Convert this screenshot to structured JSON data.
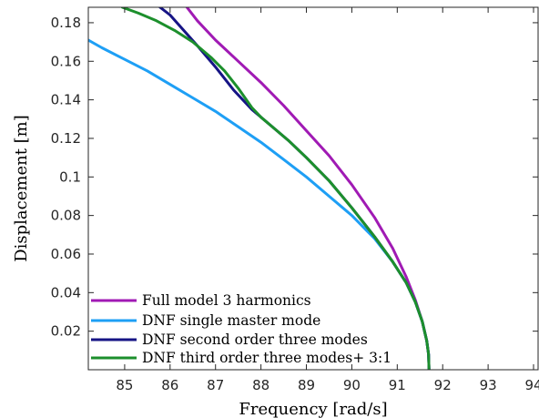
{
  "chart_data": {
    "type": "line",
    "xlabel": "Frequency [rad/s]",
    "ylabel": "Displacement [m]",
    "xlim": [
      84.2,
      94.1
    ],
    "ylim": [
      0.0,
      0.188
    ],
    "x_ticks": [
      "85",
      "86",
      "87",
      "88",
      "89",
      "90",
      "91",
      "92",
      "93",
      "94"
    ],
    "y_ticks": [
      "0.02",
      "0.04",
      "0.06",
      "0.08",
      "0.1",
      "0.12",
      "0.14",
      "0.16",
      "0.18"
    ],
    "legend_position": "bottom-left",
    "grid": false,
    "series": [
      {
        "name": "Full model 3 harmonics",
        "color": "#a01ab4",
        "x": [
          86.37,
          86.6,
          87.0,
          87.5,
          88.0,
          88.5,
          89.0,
          89.5,
          90.0,
          90.5,
          90.9,
          91.2,
          91.4,
          91.55,
          91.65,
          91.69,
          91.7
        ],
        "y": [
          0.188,
          0.181,
          0.171,
          0.16,
          0.149,
          0.137,
          0.124,
          0.111,
          0.096,
          0.079,
          0.063,
          0.048,
          0.036,
          0.025,
          0.015,
          0.008,
          0.0
        ]
      },
      {
        "name": "DNF single master mode",
        "color": "#1e9ff5",
        "x": [
          84.2,
          84.5,
          85.0,
          85.5,
          86.0,
          86.5,
          87.0,
          87.5,
          88.0,
          88.5,
          89.0,
          89.5,
          90.0,
          90.5,
          90.9,
          91.2,
          91.4,
          91.55,
          91.65,
          91.69,
          91.7
        ],
        "y": [
          0.171,
          0.167,
          0.161,
          0.155,
          0.148,
          0.141,
          0.134,
          0.126,
          0.118,
          0.109,
          0.1,
          0.09,
          0.08,
          0.068,
          0.056,
          0.045,
          0.035,
          0.025,
          0.015,
          0.008,
          0.0
        ]
      },
      {
        "name": "DNF second order three modes",
        "color": "#161485",
        "x": [
          85.78,
          86.0,
          86.3,
          86.6,
          87.0,
          87.4,
          87.8,
          88.2,
          88.6,
          89.0,
          89.5,
          90.0,
          90.5,
          90.9,
          91.2,
          91.4,
          91.55,
          91.65,
          91.69,
          91.7
        ],
        "y": [
          0.188,
          0.184,
          0.176,
          0.168,
          0.157,
          0.145,
          0.135,
          0.127,
          0.119,
          0.11,
          0.098,
          0.084,
          0.069,
          0.056,
          0.045,
          0.035,
          0.025,
          0.015,
          0.008,
          0.0
        ]
      },
      {
        "name": "DNF third order three modes+ 3:1",
        "color": "#1c8f2c",
        "x": [
          84.95,
          85.3,
          85.7,
          86.1,
          86.5,
          86.9,
          87.2,
          87.5,
          87.8,
          88.0,
          88.3,
          88.6,
          89.0,
          89.5,
          90.0,
          90.5,
          90.9,
          91.2,
          91.4,
          91.55,
          91.65,
          91.69,
          91.7
        ],
        "y": [
          0.188,
          0.185,
          0.181,
          0.176,
          0.17,
          0.162,
          0.155,
          0.146,
          0.136,
          0.131,
          0.125,
          0.119,
          0.11,
          0.098,
          0.084,
          0.069,
          0.056,
          0.045,
          0.035,
          0.025,
          0.015,
          0.008,
          0.0
        ]
      }
    ]
  }
}
